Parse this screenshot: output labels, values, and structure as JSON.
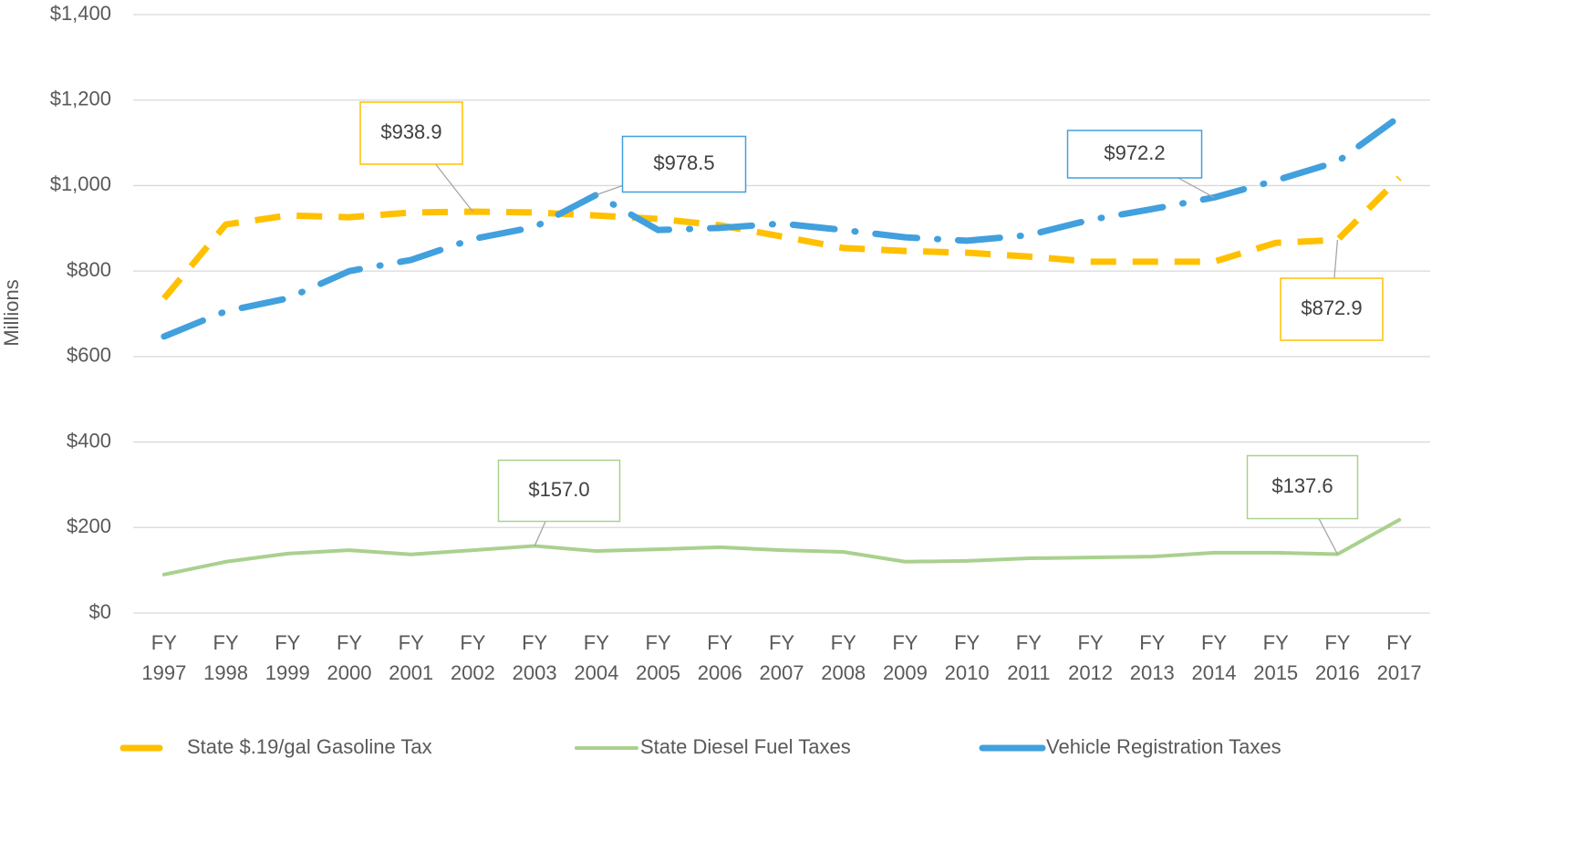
{
  "chart_data": {
    "type": "line",
    "y_label": "Millions",
    "categories": [
      "FY 1997",
      "FY 1998",
      "FY 1999",
      "FY 2000",
      "FY 2001",
      "FY 2002",
      "FY 2003",
      "FY 2004",
      "FY 2005",
      "FY 2006",
      "FY 2007",
      "FY 2008",
      "FY 2009",
      "FY 2010",
      "FY 2011",
      "FY 2012",
      "FY 2013",
      "FY 2014",
      "FY 2015",
      "FY 2016",
      "FY 2017"
    ],
    "series": [
      {
        "name": "State $.19/gal Gasoline Tax",
        "color": "#FFC000",
        "style": "dash",
        "values": [
          736,
          909,
          930,
          926,
          937,
          938.9,
          937,
          930,
          922,
          907,
          881,
          854,
          847,
          843,
          834,
          822,
          822,
          822,
          866,
          872.9,
          1018
        ],
        "value_labels": [
          null,
          null,
          null,
          null,
          null,
          "$938.9",
          null,
          null,
          null,
          null,
          null,
          null,
          null,
          null,
          null,
          null,
          null,
          null,
          null,
          "$872.9",
          null
        ]
      },
      {
        "name": "State Diesel Fuel Taxes",
        "color": "#A9D18E",
        "style": "solid",
        "values": [
          90,
          120,
          139,
          147,
          137,
          147,
          157.0,
          145,
          149,
          154,
          147,
          143,
          120,
          122,
          128,
          130,
          132,
          141,
          141,
          137.6,
          218
        ],
        "value_labels": [
          null,
          null,
          null,
          null,
          null,
          null,
          "$157.0",
          null,
          null,
          null,
          null,
          null,
          null,
          null,
          null,
          null,
          null,
          null,
          null,
          "$137.6",
          null
        ]
      },
      {
        "name": "Vehicle Registration Taxes",
        "color": "#41A0DD",
        "style": "dash-dot",
        "values": [
          647,
          706,
          736,
          800,
          826,
          875,
          903,
          978.5,
          896,
          901,
          911,
          896,
          879,
          871,
          884,
          920,
          945,
          972.2,
          1012,
          1056,
          1161
        ],
        "value_labels": [
          null,
          null,
          null,
          null,
          null,
          null,
          null,
          "$978.5",
          null,
          null,
          null,
          null,
          null,
          null,
          null,
          null,
          null,
          "$972.2",
          null,
          null,
          null
        ]
      }
    ],
    "ylim": [
      0,
      1400
    ],
    "yticks": [
      {
        "value": 0,
        "label": "$0"
      },
      {
        "value": 200,
        "label": "$200"
      },
      {
        "value": 400,
        "label": "$400"
      },
      {
        "value": 600,
        "label": "$600"
      },
      {
        "value": 800,
        "label": "$800"
      },
      {
        "value": 1000,
        "label": "$1,000"
      },
      {
        "value": 1200,
        "label": "$1,200"
      },
      {
        "value": 1400,
        "label": "$1,400"
      }
    ],
    "grid": true,
    "legend": "bottom"
  }
}
